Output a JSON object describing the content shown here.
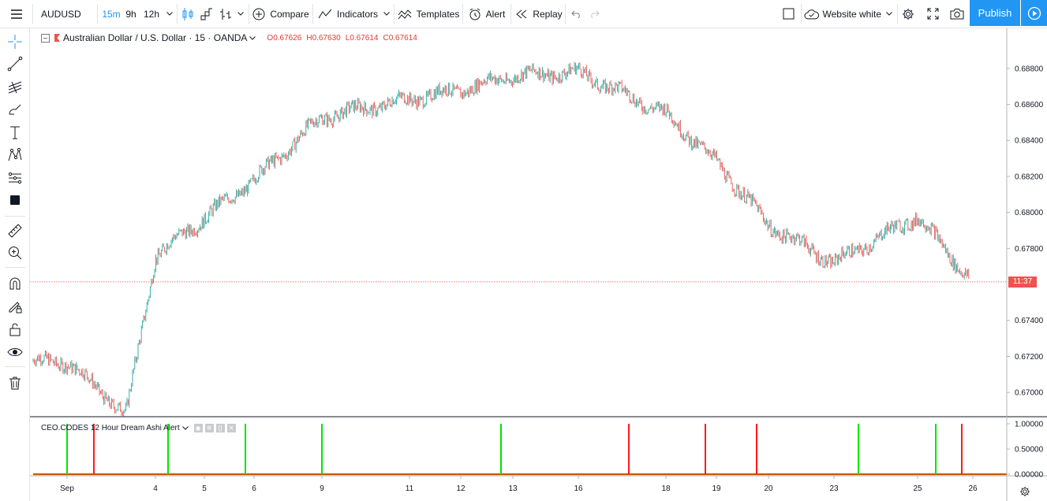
{
  "toolbar": {
    "symbol": "AUDUSD",
    "intervals": [
      "15m",
      "9h",
      "12h"
    ],
    "compare_label": "Compare",
    "indicators_label": "Indicators",
    "templates_label": "Templates",
    "alert_label": "Alert",
    "replay_label": "Replay",
    "layout_label": "Website white",
    "publish_label": "Publish"
  },
  "legend": {
    "title": "Australian Dollar / U.S. Dollar · 15 · OANDA",
    "open_label": "O",
    "open": "0.67626",
    "high_label": "H",
    "high": "0.67630",
    "low_label": "L",
    "low": "0.67614",
    "close_label": "C",
    "close": "0.67614"
  },
  "indicator": {
    "title": "CEO.CODES 12 Hour Dream Ashi Alert"
  },
  "price_tag": "11:37",
  "colors": {
    "up": "#26a69a",
    "down": "#ef5350",
    "buy_signal": "#00e600",
    "sell_signal": "#ff1a1a",
    "baseline": "#c85a00",
    "accent": "#2196f3"
  },
  "chart_data": [
    {
      "type": "line",
      "title": "Australian Dollar / U.S. Dollar · 15 · OANDA",
      "x_ticks": [
        "Sep",
        "4",
        "5",
        "6",
        "9",
        "11",
        "12",
        "13",
        "16",
        "18",
        "19",
        "20",
        "23",
        "25",
        "26"
      ],
      "y_ticks": [
        "0.68800",
        "0.68600",
        "0.68400",
        "0.68200",
        "0.68000",
        "0.67800",
        "0.67400",
        "0.67200",
        "0.67000"
      ],
      "ylim": [
        0.669,
        0.6897
      ],
      "current_price_line": 0.67614,
      "series": [
        {
          "x": [
            "Sep",
            "3",
            "4",
            "5",
            "6",
            "9",
            "11",
            "12",
            "13",
            "16",
            "18",
            "19",
            "20",
            "23",
            "25",
            "26"
          ],
          "values": [
            0.6717,
            0.6688,
            0.6776,
            0.6797,
            0.6818,
            0.6853,
            0.6863,
            0.6868,
            0.6876,
            0.6878,
            0.6855,
            0.6828,
            0.6793,
            0.6772,
            0.6798,
            0.6761
          ]
        }
      ]
    },
    {
      "type": "bar",
      "title": "CEO.CODES 12 Hour Dream Ashi Alert",
      "y_ticks": [
        "1.00000",
        "0.50000",
        "0.00000"
      ],
      "ylim": [
        0,
        1
      ],
      "buy_signals_x": [
        "Sep",
        "4",
        "6",
        "9",
        "13",
        "23",
        "25"
      ],
      "sell_signals_x": [
        "Sep",
        "17",
        "18",
        "19",
        "25"
      ]
    }
  ]
}
